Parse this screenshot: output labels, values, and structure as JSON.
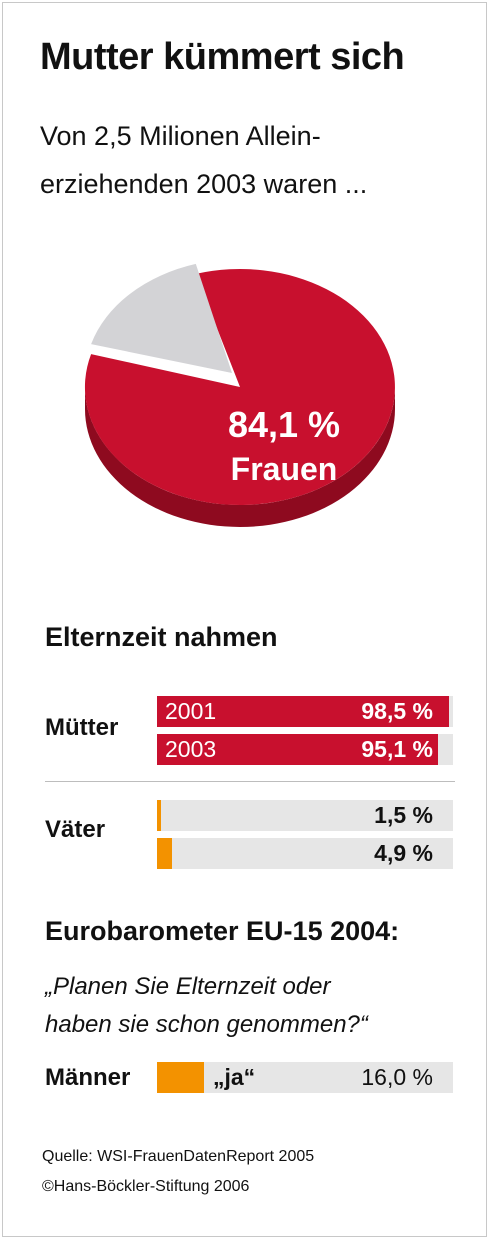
{
  "title": "Mutter kümmert sich",
  "subtitle": "Von 2,5 Milionen Allein-erziehenden 2003 waren ...",
  "subtitle_line1": "Von 2,5 Milionen Allein-",
  "subtitle_line2": "erziehenden 2003 waren ...",
  "pie_label_value": "84,1 %",
  "pie_label_text": "Frauen",
  "section_elternzeit": "Elternzeit nahmen",
  "label_muetter": "Mütter",
  "label_vaeter": "Väter",
  "section_eurobarometer": "Eurobarometer EU-15 2004:",
  "question_line1": "„Planen Sie Elternzeit oder",
  "question_line2": "haben sie schon genommen?“",
  "label_maenner": "Männer",
  "label_ja": "„ja“",
  "maenner_value": "16,0 %",
  "source_line1": "Quelle: WSI-FrauenDatenReport 2005",
  "source_line2": "©Hans-Böckler-Stiftung 2006",
  "colors": {
    "red": "#c8102e",
    "red_dark": "#8e0a1f",
    "grey": "#d3d3d6",
    "grey_dark": "#a8a8ab",
    "orange": "#f39200",
    "track": "#e6e6e6"
  },
  "chart_data": [
    {
      "type": "pie",
      "title": "Mutter kümmert sich",
      "subtitle": "Von 2,5 Milionen Allein-erziehenden 2003 waren ...",
      "slices": [
        {
          "label": "Frauen",
          "value": 84.1,
          "display": "84,1 %"
        },
        {
          "label": "",
          "value": 15.9
        }
      ]
    },
    {
      "type": "bar",
      "title": "Elternzeit nahmen",
      "ylim": [
        0,
        100
      ],
      "groups": [
        {
          "name": "Mütter",
          "bars": [
            {
              "year": "2001",
              "value": 98.5,
              "display": "98,5 %"
            },
            {
              "year": "2003",
              "value": 95.1,
              "display": "95,1 %"
            }
          ]
        },
        {
          "name": "Väter",
          "bars": [
            {
              "year": "",
              "value": 1.5,
              "display": "1,5 %"
            },
            {
              "year": "",
              "value": 4.9,
              "display": "4,9 %"
            }
          ]
        }
      ]
    },
    {
      "type": "bar",
      "title": "Eurobarometer EU-15 2004:",
      "ylim": [
        0,
        100
      ],
      "groups": [
        {
          "name": "Männer",
          "bars": [
            {
              "year": "„ja“",
              "value": 16.0,
              "display": "16,0 %"
            }
          ]
        }
      ]
    }
  ]
}
